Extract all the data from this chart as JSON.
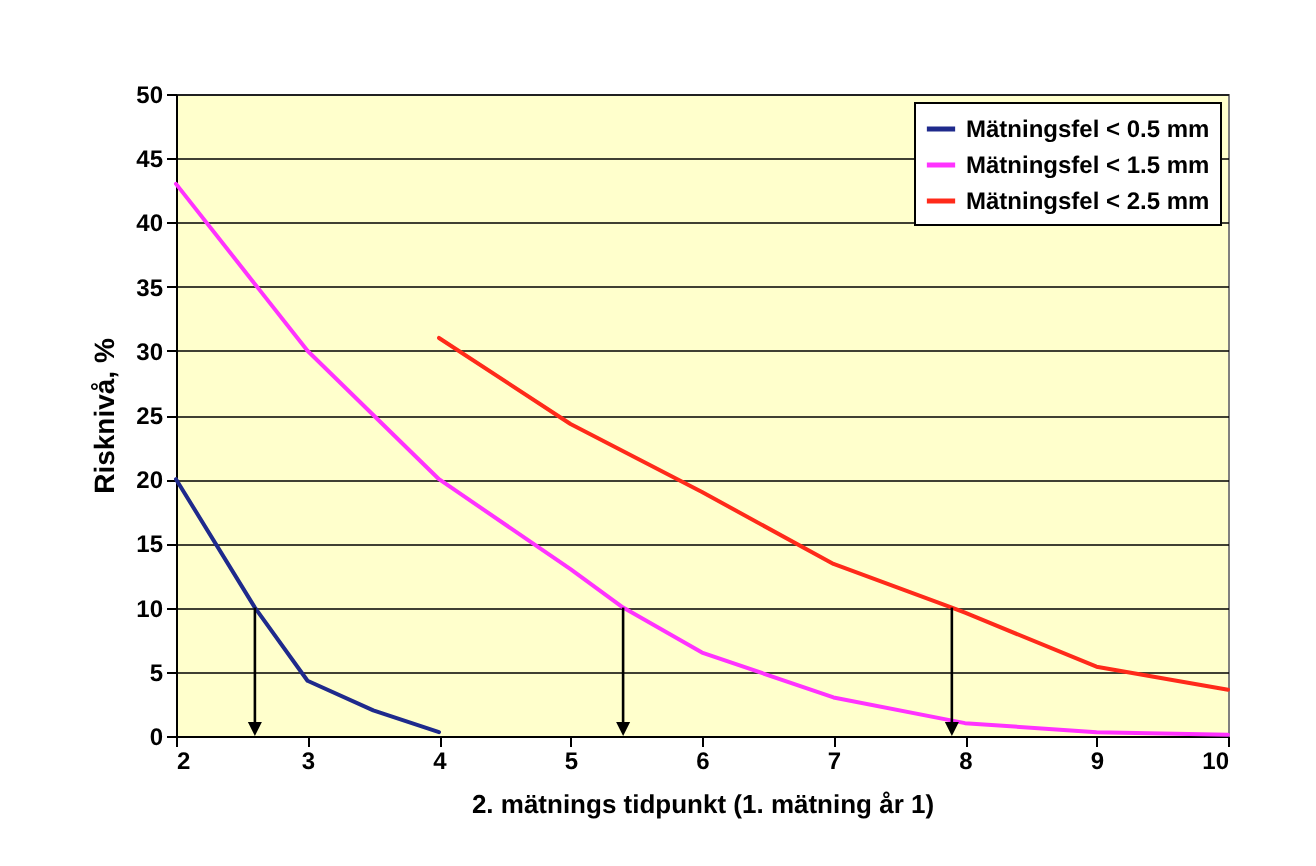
{
  "chart_data": {
    "type": "line",
    "xlabel": "2. mätnings tidpunkt (1. mätning år 1)",
    "ylabel": "Risknivå, %",
    "series": [
      {
        "name": "Mätningsfel < 0.5 mm",
        "color": "#1f2a8c",
        "x": [
          2,
          2.6,
          3,
          3.5,
          4
        ],
        "values": [
          20,
          10,
          4.3,
          2,
          0.3
        ]
      },
      {
        "name": "Mätningsfel < 1.5 mm",
        "color": "#ff33ff",
        "x": [
          2,
          3,
          4,
          5,
          5.4,
          6,
          7,
          8,
          9,
          10
        ],
        "values": [
          43,
          30,
          20,
          13,
          10,
          6.5,
          3,
          1,
          0.3,
          0.1
        ]
      },
      {
        "name": "Mätningsfel < 2.5 mm",
        "color": "#ff2a1a",
        "x": [
          4,
          5,
          6,
          7,
          7.9,
          8,
          9,
          10
        ],
        "values": [
          31,
          24.3,
          19,
          13.4,
          10,
          9.6,
          5.4,
          3.6
        ]
      }
    ],
    "xlim": [
      2,
      10
    ],
    "xticks": [
      2,
      3,
      4,
      5,
      6,
      7,
      8,
      9,
      10
    ],
    "ylim": [
      0,
      50
    ],
    "yticks": [
      0,
      5,
      10,
      15,
      20,
      25,
      30,
      35,
      40,
      45,
      50
    ],
    "grid": "y",
    "legend": "top right",
    "marker": "none",
    "line_style": "solid"
  }
}
